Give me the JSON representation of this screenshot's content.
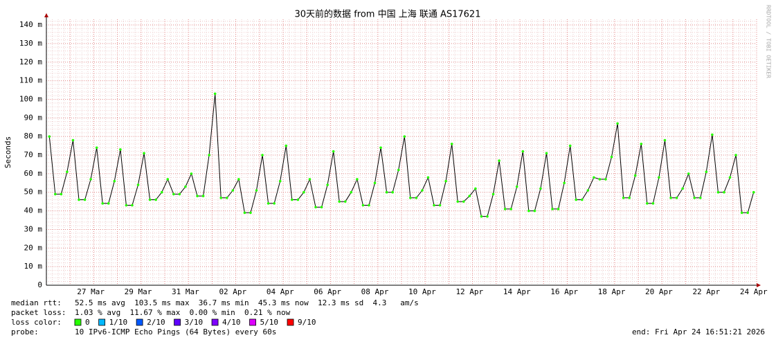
{
  "chart_data": {
    "type": "line",
    "title": "30天前的数据 from 中国 上海 联通 AS17621",
    "y_label": "Seconds",
    "side_text": "RRDTOOL / TOBI OETIKER",
    "categories": [
      null,
      null,
      null,
      null,
      null,
      null,
      null,
      "27 Mar",
      null,
      null,
      null,
      null,
      null,
      null,
      null,
      "29 Mar",
      null,
      null,
      null,
      null,
      null,
      null,
      null,
      "31 Mar",
      null,
      null,
      null,
      null,
      null,
      null,
      null,
      "02 Apr",
      null,
      null,
      null,
      null,
      null,
      null,
      null,
      "04 Apr",
      null,
      null,
      null,
      null,
      null,
      null,
      null,
      "06 Apr",
      null,
      null,
      null,
      null,
      null,
      null,
      null,
      "08 Apr",
      null,
      null,
      null,
      null,
      null,
      null,
      null,
      "10 Apr",
      null,
      null,
      null,
      null,
      null,
      null,
      null,
      "12 Apr",
      null,
      null,
      null,
      null,
      null,
      null,
      null,
      "14 Apr",
      null,
      null,
      null,
      null,
      null,
      null,
      null,
      "16 Apr",
      null,
      null,
      null,
      null,
      null,
      null,
      null,
      "18 Apr",
      null,
      null,
      null,
      null,
      null,
      null,
      null,
      "20 Apr",
      null,
      null,
      null,
      null,
      null,
      null,
      null,
      "22 Apr",
      null,
      null,
      null,
      null,
      null,
      null,
      null,
      "24 Apr"
    ],
    "series": [
      {
        "name": "median rtt",
        "color": "#26ff00",
        "values": [
          80,
          49,
          49,
          61,
          78,
          46,
          46,
          57,
          74,
          44,
          44,
          56,
          73,
          43,
          43,
          54,
          71,
          46,
          46,
          50,
          57,
          49,
          49,
          53,
          60,
          48,
          48,
          70,
          103,
          47,
          47,
          51,
          57,
          39,
          39,
          51,
          70,
          44,
          44,
          56,
          75,
          46,
          46,
          50,
          57,
          42,
          42,
          54,
          72,
          45,
          45,
          50,
          57,
          43,
          43,
          55,
          74,
          50,
          50,
          62,
          80,
          47,
          47,
          51,
          58,
          43,
          43,
          56,
          76,
          45,
          45,
          48,
          52,
          37,
          37,
          49,
          67,
          41,
          41,
          53,
          72,
          40,
          40,
          52,
          71,
          41,
          41,
          55,
          75,
          46,
          46,
          51,
          58,
          57,
          57,
          69,
          87,
          47,
          47,
          59,
          76,
          44,
          44,
          58,
          78,
          47,
          47,
          52,
          60,
          47,
          47,
          61,
          81,
          50,
          50,
          58,
          70,
          39,
          39,
          50
        ]
      }
    ],
    "ylim": [
      0,
      143
    ],
    "yticks": [
      0,
      {
        "value": 10,
        "label": "10 m"
      },
      {
        "value": 20,
        "label": "20 m"
      },
      {
        "value": 30,
        "label": "30 m"
      },
      {
        "value": 40,
        "label": "40 m"
      },
      {
        "value": 50,
        "label": "50 m"
      },
      {
        "value": 60,
        "label": "60 m"
      },
      {
        "value": 70,
        "label": "70 m"
      },
      {
        "value": 80,
        "label": "80 m"
      },
      {
        "value": 90,
        "label": "90 m"
      },
      {
        "value": 100,
        "label": "100 m"
      },
      {
        "value": 110,
        "label": "110 m"
      },
      {
        "value": 120,
        "label": "120 m"
      },
      {
        "value": 130,
        "label": "130 m"
      },
      {
        "value": 140,
        "label": "140 m"
      }
    ],
    "grid": true,
    "stats": [
      {
        "label": "median rtt:",
        "text": "52.5 ms avg  103.5 ms max  36.7 ms min  45.3 ms now  12.3 ms sd  4.3   am/s"
      },
      {
        "label": "packet loss:",
        "text": "1.03 % avg  11.67 % max  0.00 % min  0.21 % now"
      }
    ],
    "loss_label": "loss color:",
    "loss_colors": [
      {
        "label": "0",
        "color": "#26ff00"
      },
      {
        "label": "1/10",
        "color": "#00b8ff"
      },
      {
        "label": "2/10",
        "color": "#0059ff"
      },
      {
        "label": "3/10",
        "color": "#5e00ff"
      },
      {
        "label": "4/10",
        "color": "#7e00ff"
      },
      {
        "label": "5/10",
        "color": "#dd00ff"
      },
      {
        "label": "9/10",
        "color": "#ff0000"
      }
    ],
    "probe_label": "probe:",
    "probe_text": "10 IPv6-ICMP Echo Pings (64 Bytes) every 60s",
    "end_text": "end: Fri Apr 24 16:51:21 2026"
  }
}
